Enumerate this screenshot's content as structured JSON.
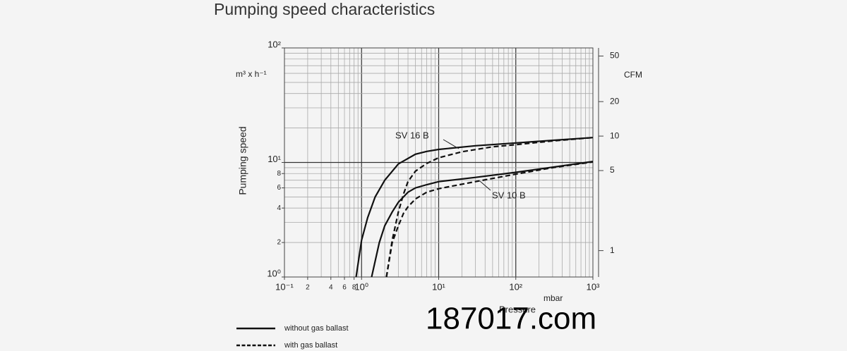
{
  "chart_data": {
    "type": "line",
    "title": "Pumping speed characteristics",
    "ylabel": "Pumping speed",
    "yunit": "m³ x h⁻¹",
    "y2unit": "CFM",
    "xunit": "mbar",
    "xlabel": "Pressure",
    "watermark": "187017.com",
    "xscale": "log",
    "yscale": "log",
    "y2scale": "log",
    "xlim": [
      0.1,
      1000
    ],
    "ylim": [
      1,
      100
    ],
    "y2lim": [
      0.5886,
      58.86
    ],
    "xticks": [
      {
        "value": 0.1,
        "label": "10⁻¹"
      },
      {
        "value": 0.2,
        "label": "2"
      },
      {
        "value": 0.4,
        "label": "4"
      },
      {
        "value": 0.6,
        "label": "6"
      },
      {
        "value": 0.8,
        "label": "8"
      },
      {
        "value": 1,
        "label": "10⁰"
      },
      {
        "value": 10,
        "label": "10¹"
      },
      {
        "value": 100,
        "label": "10²"
      },
      {
        "value": 1000,
        "label": "10³"
      }
    ],
    "yticks": [
      {
        "value": 1,
        "label": "10⁰"
      },
      2,
      4,
      6,
      8,
      {
        "value": 10,
        "label": "10¹"
      },
      {
        "value": 100,
        "label": "10²"
      }
    ],
    "y2ticks": [
      1,
      5,
      10,
      20,
      50
    ],
    "grid": true,
    "xgrid": [
      0.2,
      0.3,
      0.4,
      0.5,
      0.6,
      0.7,
      0.8,
      0.9,
      1,
      2,
      3,
      4,
      5,
      6,
      7,
      8,
      9,
      10,
      20,
      30,
      40,
      50,
      60,
      70,
      80,
      90,
      100,
      200,
      300,
      400,
      500,
      600,
      700,
      800,
      900
    ],
    "ygrid": [
      2,
      3,
      4,
      5,
      6,
      7,
      8,
      9,
      10,
      20,
      30,
      40,
      50,
      60,
      70,
      80,
      90
    ],
    "annotations": [
      "SV 16 B",
      "SV 10 B"
    ],
    "legend": [
      {
        "text": "without gas ballast",
        "dash": false
      },
      {
        "text": "with gas ballast",
        "dash": true
      }
    ],
    "series": [
      {
        "color": "#111111",
        "dash": false,
        "x": [
          0.85,
          1,
          1.2,
          1.5,
          2,
          3,
          5,
          7,
          10,
          30,
          100,
          300,
          1000
        ],
        "values": [
          1,
          2.1,
          3.3,
          5,
          7,
          9.7,
          11.8,
          12.5,
          13,
          14,
          14.8,
          15.6,
          16.5
        ]
      },
      {
        "color": "#111111",
        "dash": true,
        "x": [
          2.1,
          2.5,
          3,
          3.5,
          4,
          5,
          7,
          10,
          20,
          50,
          100,
          300,
          1000
        ],
        "values": [
          1,
          2.1,
          3.7,
          5.3,
          6.8,
          8.4,
          9.8,
          11,
          12.4,
          13.7,
          14.3,
          15.4,
          16.5
        ]
      },
      {
        "color": "#111111",
        "dash": false,
        "x": [
          1.35,
          1.7,
          2,
          2.5,
          3,
          4,
          5,
          7,
          10,
          30,
          100,
          300,
          1000
        ],
        "values": [
          1,
          2,
          2.8,
          3.7,
          4.5,
          5.5,
          6,
          6.4,
          6.8,
          7.4,
          8.2,
          9.1,
          10.2
        ]
      },
      {
        "color": "#111111",
        "dash": true,
        "x": [
          2.1,
          2.5,
          3,
          3.5,
          4,
          5,
          7,
          10,
          30,
          100,
          300,
          1000
        ],
        "values": [
          1,
          2,
          2.8,
          3.6,
          4.1,
          4.8,
          5.5,
          5.9,
          6.8,
          7.9,
          9,
          10.1
        ]
      }
    ]
  }
}
